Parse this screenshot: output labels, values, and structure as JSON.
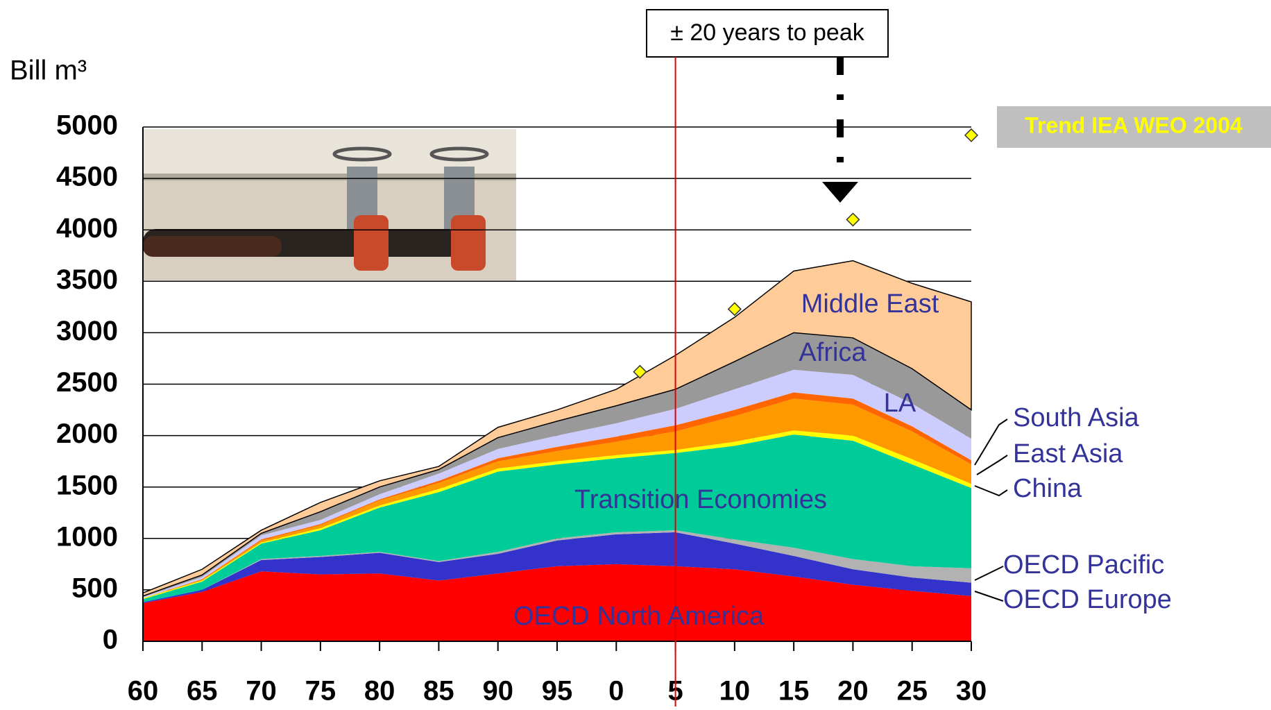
{
  "chart_data": {
    "type": "stacked_area",
    "y_label": "Bill m³",
    "annotation": "± 20 years to peak",
    "vline": {
      "x": 2005,
      "color": "#e00000"
    },
    "x": [
      1960,
      1965,
      1970,
      1975,
      1980,
      1985,
      1990,
      1995,
      2000,
      2005,
      2010,
      2015,
      2020,
      2025,
      2030
    ],
    "series": [
      {
        "name": "OECD North America",
        "color": "#ff0000",
        "values": [
          370,
          480,
          680,
          650,
          660,
          590,
          660,
          730,
          750,
          730,
          700,
          630,
          550,
          490,
          440
        ]
      },
      {
        "name": "OECD Europe",
        "color": "#3333cc",
        "values": [
          10,
          20,
          110,
          170,
          200,
          180,
          190,
          250,
          290,
          330,
          250,
          200,
          150,
          130,
          130
        ]
      },
      {
        "name": "OECD Pacific",
        "color": "#b2b2b2",
        "values": [
          0,
          0,
          10,
          10,
          10,
          10,
          20,
          20,
          20,
          20,
          40,
          80,
          100,
          110,
          140
        ]
      },
      {
        "name": "Transition Economies",
        "color": "#00cc99",
        "values": [
          30,
          80,
          150,
          250,
          430,
          670,
          780,
          720,
          720,
          750,
          910,
          1100,
          1150,
          990,
          780
        ]
      },
      {
        "name": "China",
        "color": "#ffff00",
        "values": [
          10,
          10,
          10,
          20,
          20,
          30,
          30,
          30,
          30,
          30,
          40,
          40,
          50,
          50,
          40
        ]
      },
      {
        "name": "East Asia",
        "color": "#ff9900",
        "values": [
          0,
          10,
          20,
          30,
          50,
          60,
          70,
          100,
          130,
          180,
          250,
          310,
          300,
          270,
          190
        ]
      },
      {
        "name": "South Asia",
        "color": "#ff6600",
        "values": [
          0,
          5,
          10,
          10,
          10,
          20,
          30,
          40,
          50,
          60,
          60,
          60,
          60,
          50,
          40
        ]
      },
      {
        "name": "LA",
        "color": "#ccccff",
        "values": [
          10,
          20,
          40,
          40,
          50,
          70,
          90,
          110,
          130,
          160,
          200,
          220,
          230,
          220,
          210
        ]
      },
      {
        "name": "Africa",
        "color": "#999999",
        "values": [
          10,
          20,
          20,
          80,
          70,
          40,
          110,
          140,
          170,
          190,
          270,
          360,
          360,
          340,
          280
        ]
      },
      {
        "name": "Middle East",
        "color": "#ffcc99",
        "values": [
          30,
          55,
          30,
          90,
          60,
          30,
          100,
          110,
          160,
          330,
          430,
          600,
          750,
          830,
          1050
        ]
      }
    ],
    "trend": {
      "name": "Trend IEA WEO 2004",
      "color": "#ffff00",
      "x": [
        2002,
        2010,
        2020,
        2030
      ],
      "values": [
        2620,
        3230,
        4100,
        4920
      ]
    },
    "xlim": [
      1960,
      2030
    ],
    "xticks": [
      {
        "value": 1960,
        "label": "60"
      },
      {
        "value": 1965,
        "label": "65"
      },
      {
        "value": 1970,
        "label": "70"
      },
      {
        "value": 1975,
        "label": "75"
      },
      {
        "value": 1980,
        "label": "80"
      },
      {
        "value": 1985,
        "label": "85"
      },
      {
        "value": 1990,
        "label": "90"
      },
      {
        "value": 1995,
        "label": "95"
      },
      {
        "value": 2000,
        "label": "0"
      },
      {
        "value": 2005,
        "label": "5"
      },
      {
        "value": 2010,
        "label": "10"
      },
      {
        "value": 2015,
        "label": "15"
      },
      {
        "value": 2020,
        "label": "20"
      },
      {
        "value": 2025,
        "label": "25"
      },
      {
        "value": 2030,
        "label": "30"
      }
    ],
    "ylim": [
      0,
      5000
    ],
    "yticks": [
      0,
      500,
      1000,
      1500,
      2000,
      2500,
      3000,
      3500,
      4000,
      4500,
      5000
    ],
    "grid": true
  }
}
